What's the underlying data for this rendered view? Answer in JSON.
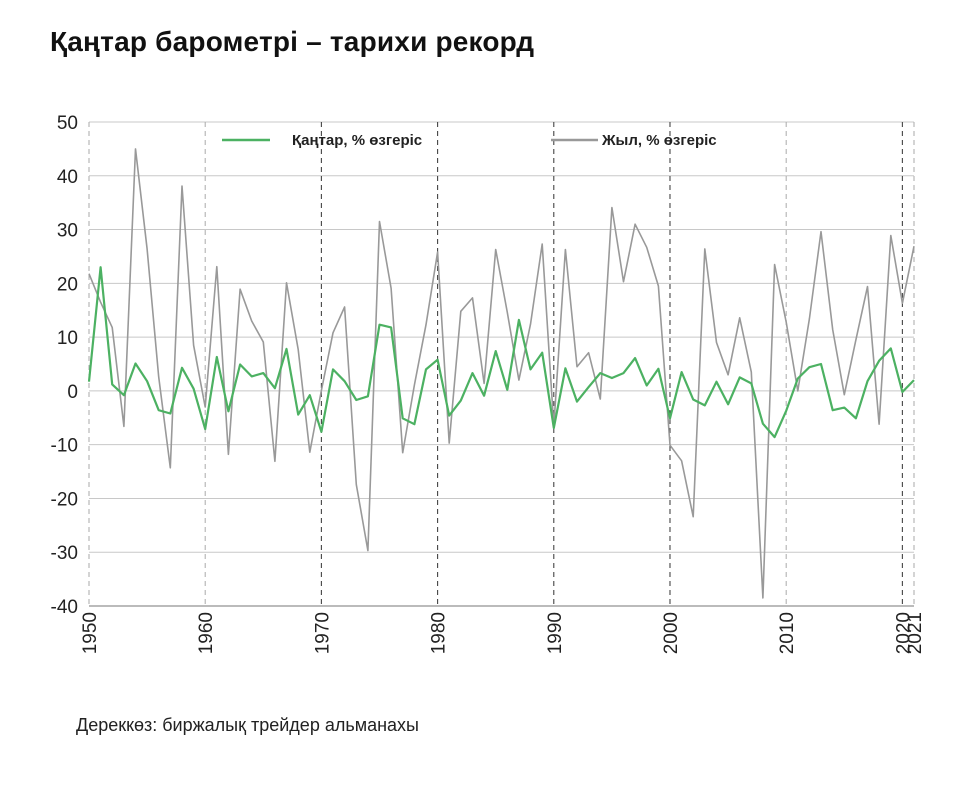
{
  "title": "Қаңтар барометрі – тарихи рекорд",
  "source": "Дереккөз: биржалық трейдер альманахы",
  "chart_data": {
    "type": "line",
    "xlim": [
      1950,
      2021
    ],
    "ylim": [
      -40,
      50
    ],
    "y_ticks": [
      -40,
      -30,
      -20,
      -10,
      0,
      10,
      20,
      30,
      40,
      50
    ],
    "x_ticks": [
      1950,
      1960,
      1970,
      1980,
      1990,
      2000,
      2010,
      2020,
      2021
    ],
    "grid": "horizontal lines; vertical dashed lines at decades",
    "legend_position": "top",
    "x": [
      1950,
      1951,
      1952,
      1953,
      1954,
      1955,
      1956,
      1957,
      1958,
      1959,
      1960,
      1961,
      1962,
      1963,
      1964,
      1965,
      1966,
      1967,
      1968,
      1969,
      1970,
      1971,
      1972,
      1973,
      1974,
      1975,
      1976,
      1977,
      1978,
      1979,
      1980,
      1981,
      1982,
      1983,
      1984,
      1985,
      1986,
      1987,
      1988,
      1989,
      1990,
      1991,
      1992,
      1993,
      1994,
      1995,
      1996,
      1997,
      1998,
      1999,
      2000,
      2001,
      2002,
      2003,
      2004,
      2005,
      2006,
      2007,
      2008,
      2009,
      2010,
      2011,
      2012,
      2013,
      2014,
      2015,
      2016,
      2017,
      2018,
      2019,
      2020,
      2021
    ],
    "series": [
      {
        "name": "Қаңтар, % өзгеріс",
        "color": "#4cb162",
        "values": [
          1.7,
          23,
          1.2,
          -0.8,
          5.1,
          1.8,
          -3.6,
          -4.2,
          4.3,
          0.4,
          -7.1,
          6.3,
          -3.8,
          4.9,
          2.7,
          3.3,
          0.5,
          7.8,
          -4.4,
          -0.8,
          -7.6,
          4.0,
          1.8,
          -1.7,
          -1.0,
          12.3,
          11.8,
          -5.1,
          -6.2,
          4.0,
          5.8,
          -4.6,
          -1.8,
          3.3,
          -0.9,
          7.4,
          0.2,
          13.2,
          4.0,
          7.1,
          -6.9,
          4.2,
          -2.0,
          0.7,
          3.3,
          2.4,
          3.3,
          6.1,
          1.0,
          4.1,
          -5.1,
          3.5,
          -1.6,
          -2.7,
          1.7,
          -2.5,
          2.5,
          1.4,
          -6.1,
          -8.6,
          -3.7,
          2.3,
          4.4,
          5.0,
          -3.6,
          -3.1,
          -5.1,
          1.8,
          5.6,
          7.9,
          -0.2,
          2.0
        ]
      },
      {
        "name": "Жыл, % өзгеріс",
        "color": "#999999",
        "values": [
          21.8,
          16.5,
          11.8,
          -6.6,
          45.0,
          26.4,
          2.6,
          -14.3,
          38.1,
          8.5,
          -3.0,
          23.1,
          -11.8,
          18.9,
          13.0,
          9.1,
          -13.1,
          20.1,
          7.7,
          -11.4,
          0.1,
          10.8,
          15.6,
          -17.4,
          -29.7,
          31.5,
          19.1,
          -11.5,
          1.1,
          12.3,
          25.8,
          -9.7,
          14.8,
          17.3,
          1.4,
          26.3,
          14.6,
          2.0,
          12.4,
          27.3,
          -6.6,
          26.3,
          4.5,
          7.1,
          -1.5,
          34.1,
          20.3,
          31.0,
          26.7,
          19.5,
          -10.1,
          -13.0,
          -23.4,
          26.4,
          9.0,
          3.0,
          13.6,
          3.5,
          -38.5,
          23.5,
          12.8,
          0.0,
          13.4,
          29.6,
          11.4,
          -0.7,
          9.5,
          19.4,
          -6.2,
          28.9,
          16.3,
          26.9
        ]
      }
    ]
  }
}
